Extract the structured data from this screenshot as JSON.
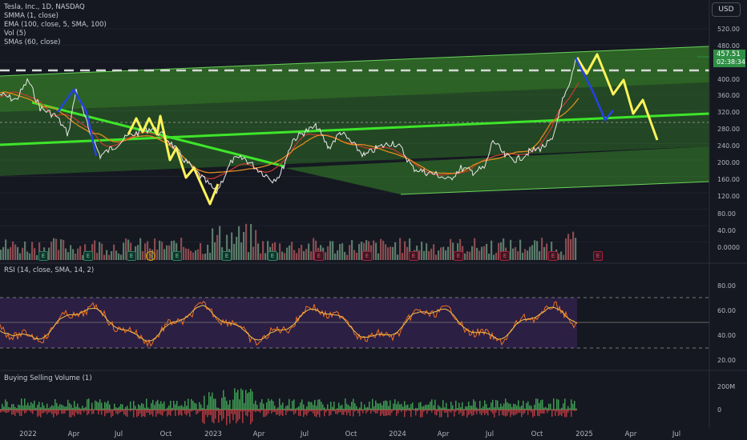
{
  "legend": {
    "symbol": "Tesla, Inc., 1D, NASDAQ",
    "smma": "SMMA (1, close)",
    "ema": "EMA (100, close, 5, SMA, 100)",
    "vol": "Vol (5)",
    "smas": "SMAs (60, close)"
  },
  "currency_button": "USD",
  "last_price": {
    "value": "457.51",
    "countdown": "02:38:34"
  },
  "panes": {
    "rsi_label": "RSI (14, close, SMA, 14, 2)",
    "bsv_label": "Buying Selling Volume (1)"
  },
  "price_axis": [
    "520.00",
    "480.00",
    "440.00",
    "400.00",
    "360.00",
    "320.00",
    "280.00",
    "240.00",
    "200.00",
    "160.00",
    "120.00",
    "80.00",
    "40.00",
    "0.0000"
  ],
  "rsi_axis": [
    "80.00",
    "60.00",
    "40.00",
    "20.00"
  ],
  "bsv_axis": [
    "200M",
    "0"
  ],
  "date_axis": [
    "2022",
    "Apr",
    "Jul",
    "Oct",
    "2023",
    "Apr",
    "Jul",
    "Oct",
    "2024",
    "Apr",
    "Jul",
    "Oct",
    "2025",
    "Apr",
    "Jul"
  ],
  "earnings_badges": [
    "E",
    "E",
    "E",
    "E",
    "S",
    "E",
    "E",
    "E",
    "E",
    "E",
    "E",
    "E",
    "E",
    "E",
    "E"
  ],
  "colors": {
    "background": "#151821",
    "channel_fill": "#3fa02a",
    "trend_line": "#3ee52a",
    "price_line": "#e8e8e8",
    "projection_yellow": "#fff35a",
    "projection_blue": "#2442e6",
    "ema_orange": "#e08a1e",
    "ma_red": "#c23b2e",
    "rsi_line": "#f0701e",
    "rsi_ma": "#f5c04a",
    "rsi_band": "#2b1f44",
    "vol_up": "#5a7a6a",
    "vol_down": "#8a4a4f"
  },
  "icons": {
    "earnings": "earnings-e-icon",
    "split": "split-s-icon",
    "dividend_future": "lightning-icon",
    "plus": "plus-icon"
  }
}
